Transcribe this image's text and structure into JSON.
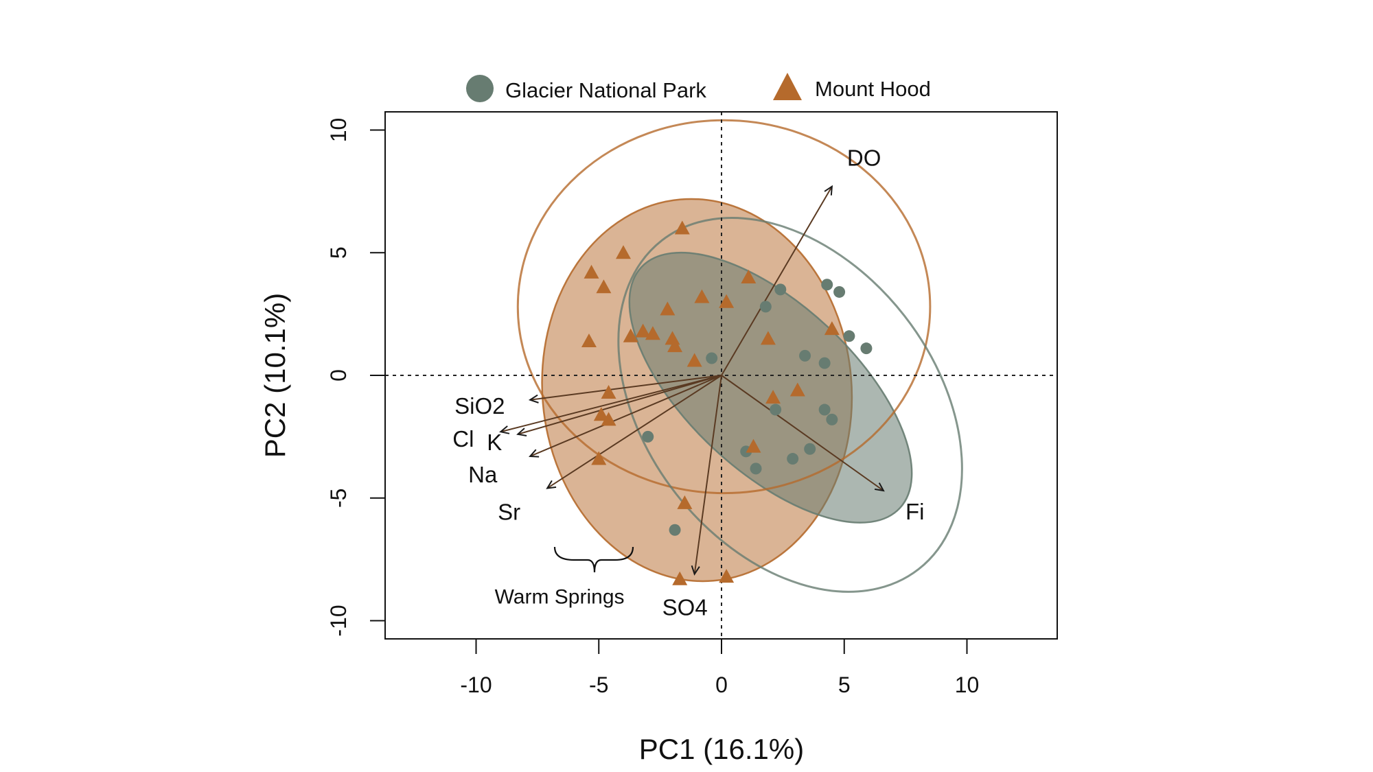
{
  "chart_data": {
    "type": "scatter",
    "title": "",
    "xlabel": "PC1 (16.1%)",
    "ylabel": "PC2 (10.1%)",
    "xlim": [
      -10,
      10
    ],
    "ylim": [
      -10,
      10
    ],
    "xticks": [
      "-10",
      "-5",
      "0",
      "5",
      "10"
    ],
    "yticks": [
      "-10",
      "-5",
      "0",
      "5",
      "10"
    ],
    "grid": false,
    "legend_position": "top",
    "colors": {
      "glacier": "#677c71",
      "hood": "#b56a2c",
      "arrow": "#5a3a22"
    },
    "series": [
      {
        "name": "Glacier National Park",
        "marker": "circle",
        "points": [
          [
            -0.4,
            0.7
          ],
          [
            1.8,
            2.8
          ],
          [
            2.4,
            3.5
          ],
          [
            4.3,
            3.7
          ],
          [
            4.8,
            3.4
          ],
          [
            5.2,
            1.6
          ],
          [
            5.9,
            1.1
          ],
          [
            3.4,
            0.8
          ],
          [
            4.2,
            0.5
          ],
          [
            2.2,
            -1.4
          ],
          [
            4.2,
            -1.4
          ],
          [
            4.5,
            -1.8
          ],
          [
            1.0,
            -3.1
          ],
          [
            1.4,
            -3.8
          ],
          [
            2.9,
            -3.4
          ],
          [
            3.6,
            -3.0
          ],
          [
            -3.0,
            -2.5
          ],
          [
            -1.9,
            -6.3
          ]
        ]
      },
      {
        "name": "Mount Hood",
        "marker": "triangle",
        "points": [
          [
            -1.6,
            6.0
          ],
          [
            -4.0,
            5.0
          ],
          [
            -5.3,
            4.2
          ],
          [
            -4.8,
            3.6
          ],
          [
            -0.8,
            3.2
          ],
          [
            1.1,
            4.0
          ],
          [
            0.2,
            3.0
          ],
          [
            -2.2,
            2.7
          ],
          [
            -3.7,
            1.6
          ],
          [
            -3.2,
            1.8
          ],
          [
            -2.8,
            1.7
          ],
          [
            -2.0,
            1.5
          ],
          [
            -1.9,
            1.2
          ],
          [
            -5.4,
            1.4
          ],
          [
            1.9,
            1.5
          ],
          [
            4.5,
            1.9
          ],
          [
            -1.1,
            0.6
          ],
          [
            -4.6,
            -0.7
          ],
          [
            -4.9,
            -1.6
          ],
          [
            -4.6,
            -1.8
          ],
          [
            3.1,
            -0.6
          ],
          [
            2.1,
            -0.9
          ],
          [
            -5.0,
            -3.4
          ],
          [
            1.3,
            -2.9
          ],
          [
            -1.5,
            -5.2
          ],
          [
            -1.7,
            -8.3
          ],
          [
            0.2,
            -8.2
          ]
        ]
      }
    ],
    "ellipses": [
      {
        "series": "Mount Hood",
        "style": "outline",
        "center": [
          0.1,
          2.8
        ],
        "radii": [
          8.4,
          7.6
        ],
        "angle": 0
      },
      {
        "series": "Mount Hood",
        "style": "filled",
        "center": [
          -1.0,
          -0.6
        ],
        "radii": [
          6.3,
          7.8
        ],
        "angle": -5
      },
      {
        "series": "Glacier National Park",
        "style": "outline",
        "center": [
          2.8,
          -1.2
        ],
        "radii": [
          5.9,
          8.5
        ],
        "angle": -38
      },
      {
        "series": "Glacier National Park",
        "style": "filled",
        "center": [
          2.0,
          -0.5
        ],
        "radii": [
          3.4,
          7.2
        ],
        "angle": -47
      }
    ],
    "loadings": [
      {
        "label": "DO",
        "x": 4.5,
        "y": 7.7
      },
      {
        "label": "Fi",
        "x": 6.6,
        "y": -4.7
      },
      {
        "label": "SiO2",
        "x": -7.8,
        "y": -1.0
      },
      {
        "label": "Cl",
        "x": -9.0,
        "y": -2.3
      },
      {
        "label": "K",
        "x": -8.3,
        "y": -2.4
      },
      {
        "label": "Na",
        "x": -7.8,
        "y": -3.3
      },
      {
        "label": "Sr",
        "x": -7.1,
        "y": -4.6
      },
      {
        "label": "SO4",
        "x": -1.1,
        "y": -8.1
      }
    ],
    "annotations": [
      {
        "text": "Warm Springs",
        "x": -6.6,
        "y": -9.3
      }
    ]
  }
}
